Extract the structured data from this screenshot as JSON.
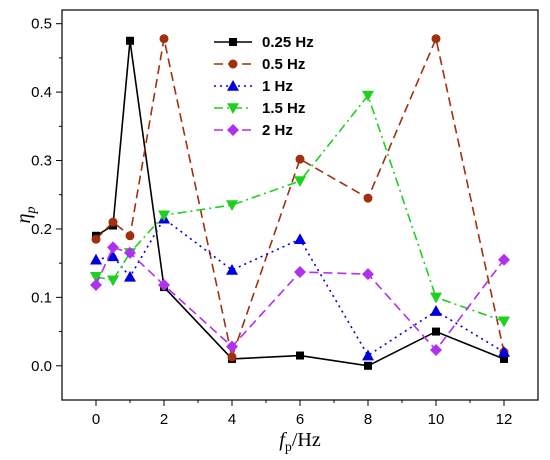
{
  "chart_data": {
    "type": "line",
    "xlabel_main": "f",
    "xlabel_sub": "p",
    "xlabel_unit": "/Hz",
    "ylabel_main": "η",
    "ylabel_sub": "p",
    "xlim": [
      -1,
      13
    ],
    "ylim": [
      -0.05,
      0.52
    ],
    "xticks": [
      0,
      2,
      4,
      6,
      8,
      10,
      12
    ],
    "yticks": [
      0.0,
      0.1,
      0.2,
      0.3,
      0.4,
      0.5
    ],
    "ytick_labels": [
      "0.0",
      "0.1",
      "0.2",
      "0.3",
      "0.4",
      "0.5"
    ],
    "legend_position": "top-center",
    "series": [
      {
        "name": "0.25 Hz",
        "color": "#000000",
        "marker": "square",
        "dash": "solid",
        "x": [
          0,
          0.5,
          1,
          2,
          4,
          6,
          8,
          10,
          12
        ],
        "y": [
          0.19,
          0.205,
          0.475,
          0.115,
          0.01,
          0.015,
          0.0,
          0.05,
          0.01
        ]
      },
      {
        "name": "0.5 Hz",
        "color": "#a03010",
        "marker": "circle",
        "dash": "dash",
        "x": [
          0,
          0.5,
          1,
          2,
          4,
          6,
          8,
          10,
          12
        ],
        "y": [
          0.185,
          0.21,
          0.19,
          0.478,
          0.013,
          0.302,
          0.245,
          0.478,
          0.02
        ]
      },
      {
        "name": "1 Hz",
        "color": "#0000e0",
        "marker": "triangle-up",
        "dash": "dot",
        "x": [
          0,
          0.5,
          1,
          2,
          4,
          6,
          8,
          10,
          12
        ],
        "y": [
          0.155,
          0.16,
          0.13,
          0.215,
          0.14,
          0.185,
          0.015,
          0.08,
          0.02
        ]
      },
      {
        "name": "1.5 Hz",
        "color": "#20d020",
        "marker": "triangle-down",
        "dash": "dashdot",
        "x": [
          0,
          0.5,
          1,
          2,
          4,
          6,
          8,
          10,
          12
        ],
        "y": [
          0.13,
          0.125,
          0.165,
          0.22,
          0.235,
          0.27,
          0.395,
          0.1,
          0.065
        ]
      },
      {
        "name": "2 Hz",
        "color": "#b030f0",
        "marker": "diamond",
        "dash": "dash",
        "x": [
          0,
          0.5,
          1,
          2,
          4,
          6,
          8,
          10,
          12
        ],
        "y": [
          0.118,
          0.173,
          0.165,
          0.118,
          0.028,
          0.137,
          0.134,
          0.023,
          0.155
        ]
      }
    ]
  }
}
